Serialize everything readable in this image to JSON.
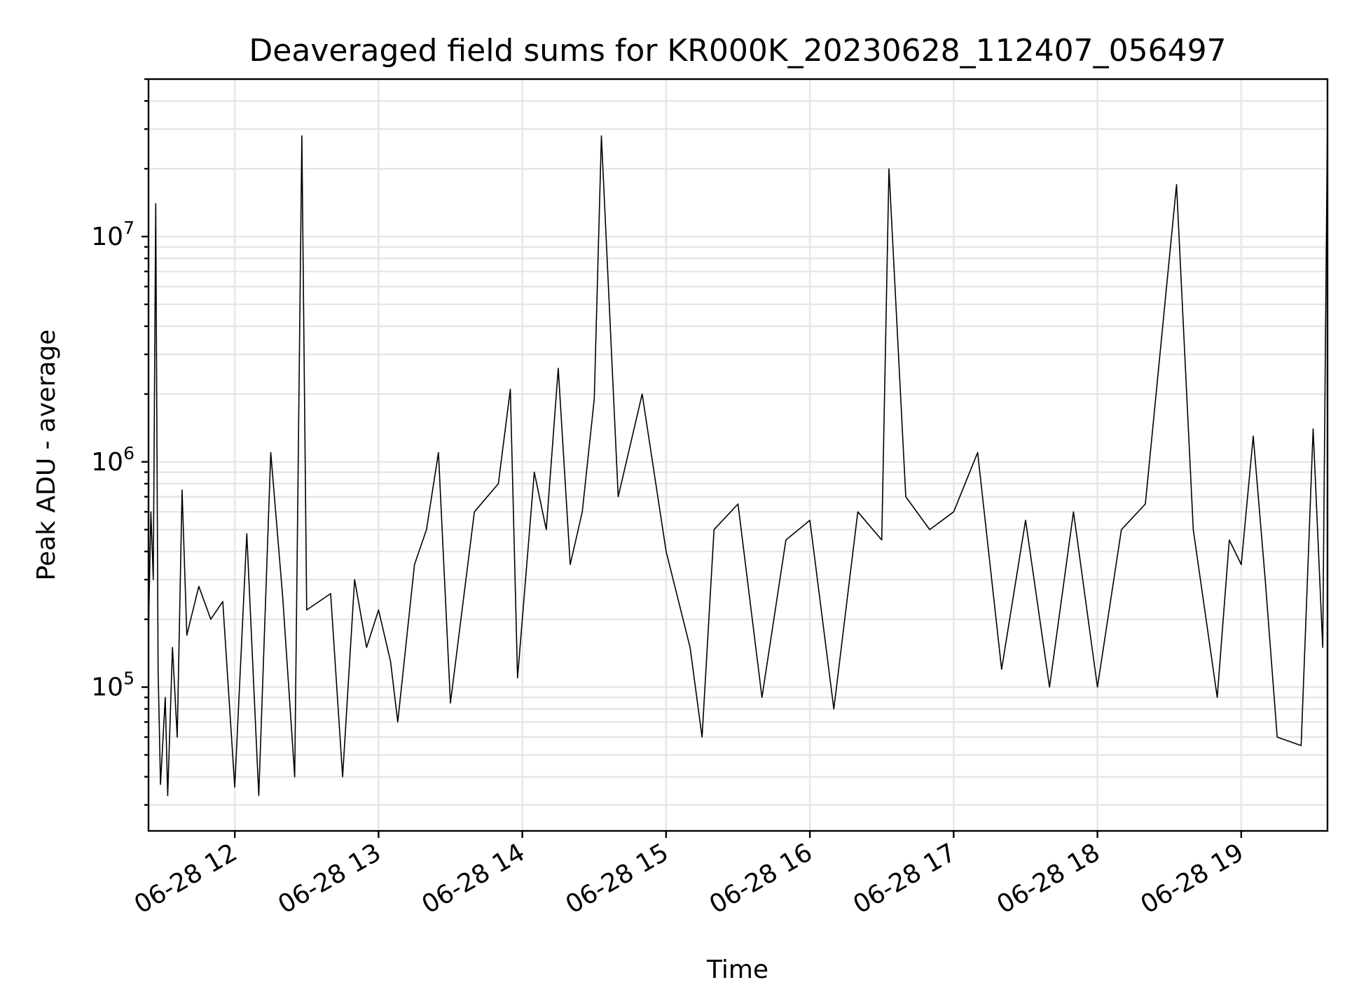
{
  "chart_data": {
    "type": "line",
    "title": "Deaveraged field sums for KR000K_20230628_112407_056497",
    "xlabel": "Time",
    "ylabel": "Peak ADU - average",
    "yscale": "log",
    "xlim": [
      "2023-06-28 11:24",
      "2023-06-28 19:36"
    ],
    "ylim": [
      23000,
      50000000
    ],
    "grid": "both",
    "line_color": "#000000",
    "x_ticks": [
      {
        "value": "2023-06-28 12:00",
        "label": "06-28 12"
      },
      {
        "value": "2023-06-28 13:00",
        "label": "06-28 13"
      },
      {
        "value": "2023-06-28 14:00",
        "label": "06-28 14"
      },
      {
        "value": "2023-06-28 15:00",
        "label": "06-28 15"
      },
      {
        "value": "2023-06-28 16:00",
        "label": "06-28 16"
      },
      {
        "value": "2023-06-28 17:00",
        "label": "06-28 17"
      },
      {
        "value": "2023-06-28 18:00",
        "label": "06-28 18"
      },
      {
        "value": "2023-06-28 19:00",
        "label": "06-28 19"
      }
    ],
    "y_ticks": [
      {
        "value": 100000,
        "base": "10",
        "exp": "5"
      },
      {
        "value": 1000000,
        "base": "10",
        "exp": "6"
      },
      {
        "value": 10000000,
        "base": "10",
        "exp": "7"
      }
    ],
    "series": [
      {
        "values": [
          [
            "2023-06-28 11:24",
            180000
          ],
          [
            "2023-06-28 11:25",
            600000
          ],
          [
            "2023-06-28 11:26",
            300000
          ],
          [
            "2023-06-28 11:27",
            14000000
          ],
          [
            "2023-06-28 11:28",
            120000
          ],
          [
            "2023-06-28 11:29",
            37000
          ],
          [
            "2023-06-28 11:31",
            90000
          ],
          [
            "2023-06-28 11:32",
            33000
          ],
          [
            "2023-06-28 11:34",
            150000
          ],
          [
            "2023-06-28 11:36",
            60000
          ],
          [
            "2023-06-28 11:38",
            750000
          ],
          [
            "2023-06-28 11:40",
            170000
          ],
          [
            "2023-06-28 11:45",
            280000
          ],
          [
            "2023-06-28 11:50",
            200000
          ],
          [
            "2023-06-28 11:55",
            240000
          ],
          [
            "2023-06-28 12:00",
            36000
          ],
          [
            "2023-06-28 12:05",
            480000
          ],
          [
            "2023-06-28 12:10",
            33000
          ],
          [
            "2023-06-28 12:15",
            1100000
          ],
          [
            "2023-06-28 12:20",
            250000
          ],
          [
            "2023-06-28 12:25",
            40000
          ],
          [
            "2023-06-28 12:28",
            28000000
          ],
          [
            "2023-06-28 12:30",
            220000
          ],
          [
            "2023-06-28 12:40",
            260000
          ],
          [
            "2023-06-28 12:45",
            40000
          ],
          [
            "2023-06-28 12:50",
            300000
          ],
          [
            "2023-06-28 12:55",
            150000
          ],
          [
            "2023-06-28 13:00",
            220000
          ],
          [
            "2023-06-28 13:05",
            130000
          ],
          [
            "2023-06-28 13:08",
            70000
          ],
          [
            "2023-06-28 13:15",
            350000
          ],
          [
            "2023-06-28 13:20",
            500000
          ],
          [
            "2023-06-28 13:25",
            1100000
          ],
          [
            "2023-06-28 13:30",
            85000
          ],
          [
            "2023-06-28 13:40",
            600000
          ],
          [
            "2023-06-28 13:50",
            800000
          ],
          [
            "2023-06-28 13:55",
            2100000
          ],
          [
            "2023-06-28 13:58",
            110000
          ],
          [
            "2023-06-28 14:05",
            900000
          ],
          [
            "2023-06-28 14:10",
            500000
          ],
          [
            "2023-06-28 14:15",
            2600000
          ],
          [
            "2023-06-28 14:20",
            350000
          ],
          [
            "2023-06-28 14:25",
            600000
          ],
          [
            "2023-06-28 14:30",
            1900000
          ],
          [
            "2023-06-28 14:33",
            28000000
          ],
          [
            "2023-06-28 14:40",
            700000
          ],
          [
            "2023-06-28 14:50",
            2000000
          ],
          [
            "2023-06-28 15:00",
            400000
          ],
          [
            "2023-06-28 15:10",
            150000
          ],
          [
            "2023-06-28 15:15",
            60000
          ],
          [
            "2023-06-28 15:20",
            500000
          ],
          [
            "2023-06-28 15:30",
            650000
          ],
          [
            "2023-06-28 15:40",
            90000
          ],
          [
            "2023-06-28 15:50",
            450000
          ],
          [
            "2023-06-28 16:00",
            550000
          ],
          [
            "2023-06-28 16:10",
            80000
          ],
          [
            "2023-06-28 16:20",
            600000
          ],
          [
            "2023-06-28 16:30",
            450000
          ],
          [
            "2023-06-28 16:33",
            20000000
          ],
          [
            "2023-06-28 16:40",
            700000
          ],
          [
            "2023-06-28 16:50",
            500000
          ],
          [
            "2023-06-28 17:00",
            600000
          ],
          [
            "2023-06-28 17:10",
            1100000
          ],
          [
            "2023-06-28 17:20",
            120000
          ],
          [
            "2023-06-28 17:30",
            550000
          ],
          [
            "2023-06-28 17:40",
            100000
          ],
          [
            "2023-06-28 17:50",
            600000
          ],
          [
            "2023-06-28 18:00",
            100000
          ],
          [
            "2023-06-28 18:10",
            500000
          ],
          [
            "2023-06-28 18:20",
            650000
          ],
          [
            "2023-06-28 18:33",
            17000000
          ],
          [
            "2023-06-28 18:40",
            500000
          ],
          [
            "2023-06-28 18:50",
            90000
          ],
          [
            "2023-06-28 18:55",
            450000
          ],
          [
            "2023-06-28 19:00",
            350000
          ],
          [
            "2023-06-28 19:05",
            1300000
          ],
          [
            "2023-06-28 19:10",
            300000
          ],
          [
            "2023-06-28 19:15",
            60000
          ],
          [
            "2023-06-28 19:25",
            55000
          ],
          [
            "2023-06-28 19:30",
            1400000
          ],
          [
            "2023-06-28 19:34",
            150000
          ],
          [
            "2023-06-28 19:36",
            35000000
          ]
        ]
      }
    ]
  }
}
